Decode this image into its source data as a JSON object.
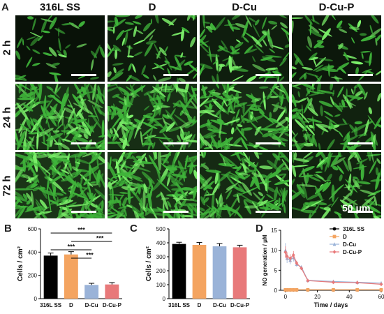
{
  "panel_a": {
    "letter": "A",
    "columns": [
      "316L SS",
      "D",
      "D-Cu",
      "D-Cu-P"
    ],
    "rows": [
      "2 h",
      "24 h",
      "72 h"
    ],
    "scale_label": "50 μm",
    "density": [
      [
        0.15,
        0.35,
        0.45,
        0.3
      ],
      [
        0.9,
        0.85,
        0.8,
        0.55
      ],
      [
        1.0,
        1.0,
        0.75,
        0.6
      ]
    ],
    "colors": {
      "cell": "#3fb43a",
      "cell_bright": "#7cf06a",
      "background": "#0c160b"
    }
  },
  "chart_data": [
    {
      "panel": "B",
      "type": "bar",
      "categories": [
        "316L SS",
        "D",
        "D-Cu",
        "D-Cu-P"
      ],
      "values": [
        370,
        380,
        118,
        122
      ],
      "errors": [
        22,
        24,
        14,
        16
      ],
      "colors": [
        "#000000",
        "#f4a460",
        "#9ab3d8",
        "#e8797a"
      ],
      "ylabel": "Cells / cm²",
      "ylim": [
        0,
        600
      ],
      "yticks": [
        0,
        200,
        400,
        600
      ],
      "significance": [
        {
          "from": 0,
          "to": 3,
          "label": "***"
        },
        {
          "from": 1,
          "to": 3,
          "label": "***"
        },
        {
          "from": 0,
          "to": 2,
          "label": "***"
        },
        {
          "from": 1,
          "to": 2,
          "label": "***"
        }
      ]
    },
    {
      "panel": "C",
      "type": "bar",
      "categories": [
        "316L SS",
        "D",
        "D-Cu",
        "D-Cu-P"
      ],
      "values": [
        392,
        385,
        375,
        368
      ],
      "errors": [
        12,
        18,
        20,
        15
      ],
      "colors": [
        "#000000",
        "#f4a460",
        "#9ab3d8",
        "#e8797a"
      ],
      "ylabel": "Cells / cm²",
      "ylim": [
        0,
        500
      ],
      "yticks": [
        0,
        100,
        200,
        300,
        400,
        500
      ]
    },
    {
      "panel": "D",
      "type": "line",
      "xlabel": "Time / days",
      "ylabel": "NO generation / μM",
      "xlim": [
        -3,
        60
      ],
      "ylim": [
        0,
        15
      ],
      "xticks": [
        0,
        20,
        40,
        60
      ],
      "yticks": [
        0,
        5,
        10,
        15
      ],
      "legend_position": "top-right",
      "series": [
        {
          "name": "316L SS",
          "color": "#000000",
          "marker": "circle",
          "x": [
            0,
            1,
            3,
            5,
            7,
            14,
            30,
            45,
            60
          ],
          "y": [
            0.1,
            0.1,
            0.1,
            0.1,
            0.1,
            0.1,
            0.1,
            0.1,
            0.1
          ]
        },
        {
          "name": "D",
          "color": "#f4a460",
          "marker": "square",
          "x": [
            0,
            1,
            3,
            5,
            7,
            14,
            30,
            45,
            60
          ],
          "y": [
            0.1,
            0.1,
            0.1,
            0.1,
            0.1,
            0.1,
            0.1,
            0.1,
            0.1
          ]
        },
        {
          "name": "D-Cu",
          "color": "#9ab3d8",
          "marker": "triangle",
          "x": [
            0,
            1,
            3,
            5,
            7,
            10,
            14,
            30,
            45,
            60
          ],
          "y": [
            10.0,
            8.0,
            7.5,
            8.2,
            6.5,
            5.8,
            2.5,
            2.2,
            2.0,
            1.8
          ],
          "errors": [
            1.8,
            1.2,
            1.0,
            1.0,
            0.6,
            0.4,
            0.3,
            0.3,
            0.3,
            0.2
          ]
        },
        {
          "name": "D-Cu-P",
          "color": "#e8797a",
          "marker": "diamond",
          "x": [
            0,
            1,
            3,
            5,
            7,
            10,
            14,
            30,
            45,
            60
          ],
          "y": [
            9.5,
            8.5,
            8.0,
            8.8,
            6.8,
            5.5,
            2.4,
            2.0,
            1.9,
            1.5
          ],
          "errors": [
            1.5,
            1.0,
            1.0,
            1.0,
            0.6,
            0.4,
            0.3,
            0.3,
            0.3,
            0.2
          ]
        }
      ]
    }
  ]
}
